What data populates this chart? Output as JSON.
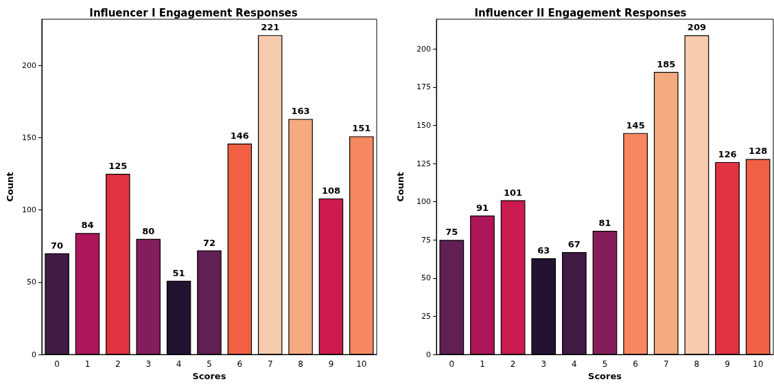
{
  "chart_data": [
    {
      "type": "bar",
      "title": "Influencer I Engagement Responses",
      "xlabel": "Scores",
      "ylabel": "Count",
      "categories": [
        "0",
        "1",
        "2",
        "3",
        "4",
        "5",
        "6",
        "7",
        "8",
        "9",
        "10"
      ],
      "values": [
        70,
        84,
        125,
        80,
        51,
        72,
        146,
        221,
        163,
        108,
        151
      ],
      "colors": [
        "#3f1b44",
        "#ad1759",
        "#e13342",
        "#841e5a",
        "#221331",
        "#611f53",
        "#f06043",
        "#f7cbad",
        "#f5aa80",
        "#cb1b4f",
        "#f58860"
      ],
      "ylim": [
        0,
        232
      ],
      "yticks": [
        0,
        50,
        100,
        150,
        200
      ],
      "data_labels": true,
      "grid": false
    },
    {
      "type": "bar",
      "title": "Influencer II Engagement Responses",
      "xlabel": "Scores",
      "ylabel": "Count",
      "categories": [
        "0",
        "1",
        "2",
        "3",
        "4",
        "5",
        "6",
        "7",
        "8",
        "9",
        "10"
      ],
      "values": [
        75,
        91,
        101,
        63,
        67,
        81,
        145,
        185,
        209,
        126,
        128
      ],
      "colors": [
        "#611f53",
        "#ad1759",
        "#cb1b4f",
        "#221331",
        "#3f1b44",
        "#841e5a",
        "#f58860",
        "#f5aa80",
        "#f7cbad",
        "#e13342",
        "#f06043"
      ],
      "ylim": [
        0,
        219.5
      ],
      "yticks": [
        0,
        25,
        50,
        75,
        100,
        125,
        150,
        175,
        200
      ],
      "data_labels": true,
      "grid": false
    }
  ]
}
